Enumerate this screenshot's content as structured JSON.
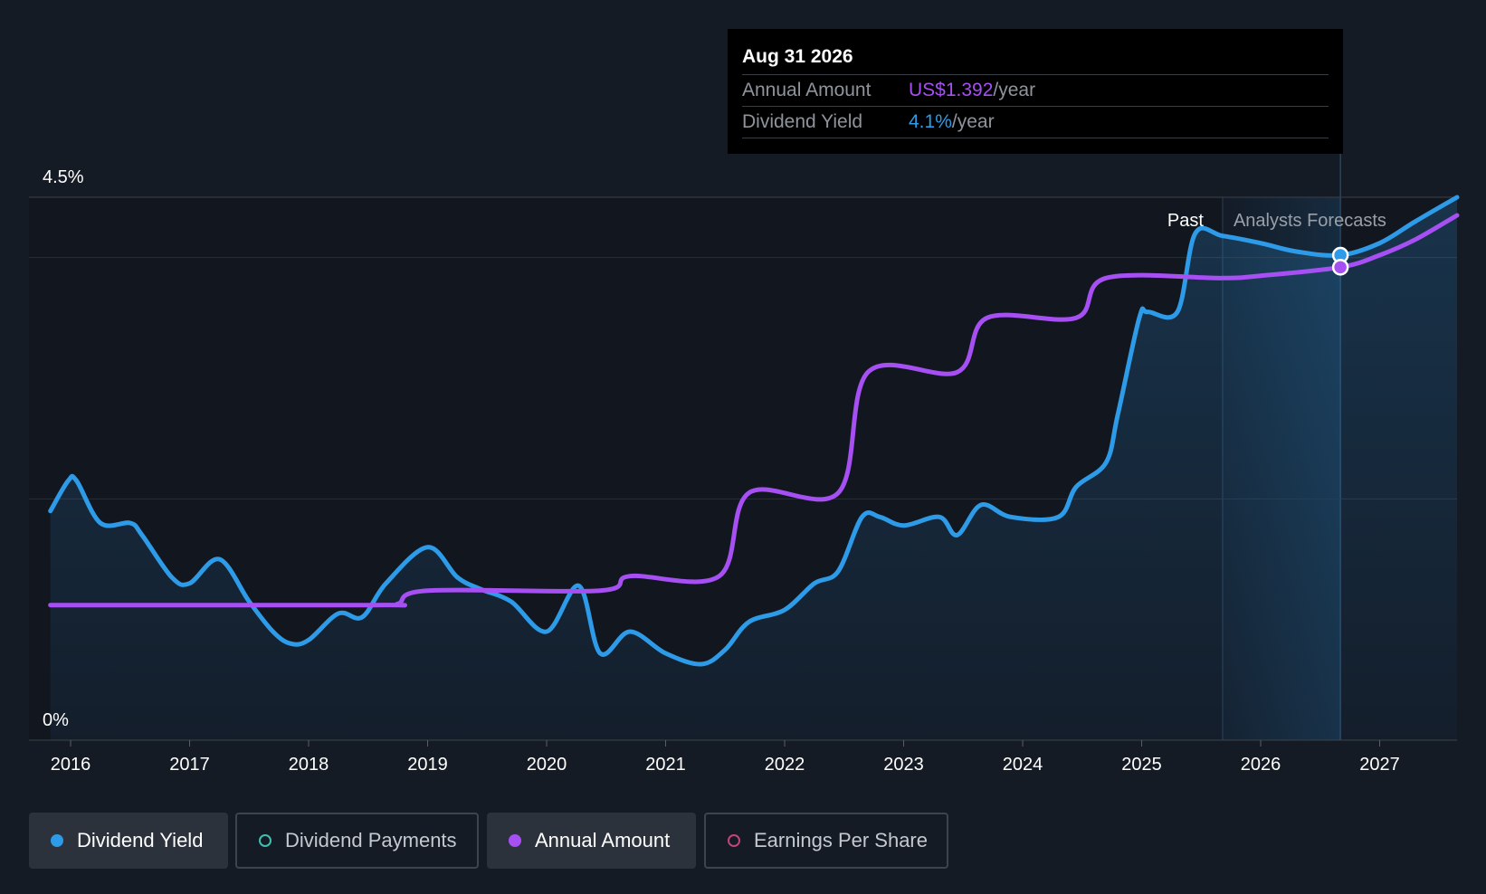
{
  "tooltip": {
    "date": "Aug 31 2026",
    "rows": [
      {
        "label": "Annual Amount",
        "value": "US$1.392",
        "unit": "/year",
        "color": "#a64ff2"
      },
      {
        "label": "Dividend Yield",
        "value": "4.1%",
        "unit": "/year",
        "color": "#2e9be8"
      }
    ]
  },
  "legend": [
    {
      "label": "Dividend Yield",
      "color": "#2e9be8",
      "active": true,
      "filled": true
    },
    {
      "label": "Dividend Payments",
      "color": "#3fbfb0",
      "active": false,
      "filled": false
    },
    {
      "label": "Annual Amount",
      "color": "#a64ff2",
      "active": true,
      "filled": true
    },
    {
      "label": "Earnings Per Share",
      "color": "#c2447a",
      "active": false,
      "filled": false
    }
  ],
  "chart_data": {
    "type": "line",
    "y_ticks": [
      "4.5%",
      "0%"
    ],
    "ylim": [
      0,
      4.5
    ],
    "x_ticks": [
      "2016",
      "2017",
      "2018",
      "2019",
      "2020",
      "2021",
      "2022",
      "2023",
      "2024",
      "2025",
      "2026",
      "2027"
    ],
    "xlim": [
      2015.65,
      2027.65
    ],
    "regions": {
      "past_label": "Past",
      "forecast_label": "Analysts Forecasts",
      "forecast_start": 2025.68,
      "marker_x": 2026.67
    },
    "series": [
      {
        "name": "Dividend Yield",
        "color": "#2e9be8",
        "unit": "%",
        "points": [
          [
            2015.83,
            1.9
          ],
          [
            2015.98,
            2.15
          ],
          [
            2016.05,
            2.15
          ],
          [
            2016.25,
            1.8
          ],
          [
            2016.5,
            1.8
          ],
          [
            2016.6,
            1.7
          ],
          [
            2016.85,
            1.35
          ],
          [
            2017.0,
            1.3
          ],
          [
            2017.25,
            1.5
          ],
          [
            2017.5,
            1.15
          ],
          [
            2017.7,
            0.9
          ],
          [
            2017.85,
            0.8
          ],
          [
            2018.0,
            0.83
          ],
          [
            2018.25,
            1.05
          ],
          [
            2018.45,
            1.02
          ],
          [
            2018.65,
            1.3
          ],
          [
            2019.0,
            1.6
          ],
          [
            2019.25,
            1.35
          ],
          [
            2019.45,
            1.25
          ],
          [
            2019.7,
            1.15
          ],
          [
            2020.0,
            0.9
          ],
          [
            2020.27,
            1.28
          ],
          [
            2020.45,
            0.72
          ],
          [
            2020.7,
            0.9
          ],
          [
            2021.0,
            0.72
          ],
          [
            2021.3,
            0.63
          ],
          [
            2021.5,
            0.75
          ],
          [
            2021.7,
            0.98
          ],
          [
            2022.0,
            1.08
          ],
          [
            2022.25,
            1.3
          ],
          [
            2022.45,
            1.4
          ],
          [
            2022.65,
            1.85
          ],
          [
            2022.8,
            1.85
          ],
          [
            2023.0,
            1.78
          ],
          [
            2023.3,
            1.85
          ],
          [
            2023.45,
            1.7
          ],
          [
            2023.65,
            1.95
          ],
          [
            2023.9,
            1.85
          ],
          [
            2024.3,
            1.85
          ],
          [
            2024.45,
            2.1
          ],
          [
            2024.7,
            2.3
          ],
          [
            2024.8,
            2.7
          ],
          [
            2024.98,
            3.5
          ],
          [
            2025.05,
            3.55
          ],
          [
            2025.3,
            3.55
          ],
          [
            2025.45,
            4.2
          ],
          [
            2025.68,
            4.18
          ],
          [
            2026.0,
            4.12
          ],
          [
            2026.3,
            4.05
          ],
          [
            2026.67,
            4.02
          ],
          [
            2027.0,
            4.12
          ],
          [
            2027.3,
            4.3
          ],
          [
            2027.65,
            4.5
          ]
        ]
      },
      {
        "name": "Annual Amount",
        "color": "#a64ff2",
        "points": [
          [
            2015.83,
            1.12
          ],
          [
            2018.55,
            1.12
          ],
          [
            2018.75,
            1.13
          ],
          [
            2019.0,
            1.24
          ],
          [
            2020.45,
            1.24
          ],
          [
            2020.7,
            1.36
          ],
          [
            2021.45,
            1.36
          ],
          [
            2021.7,
            2.05
          ],
          [
            2022.45,
            2.05
          ],
          [
            2022.7,
            3.05
          ],
          [
            2023.45,
            3.05
          ],
          [
            2023.7,
            3.5
          ],
          [
            2024.45,
            3.5
          ],
          [
            2024.7,
            3.83
          ],
          [
            2025.68,
            3.83
          ],
          [
            2026.0,
            3.85
          ],
          [
            2026.67,
            3.92
          ],
          [
            2027.0,
            4.02
          ],
          [
            2027.3,
            4.15
          ],
          [
            2027.65,
            4.35
          ]
        ]
      }
    ]
  }
}
